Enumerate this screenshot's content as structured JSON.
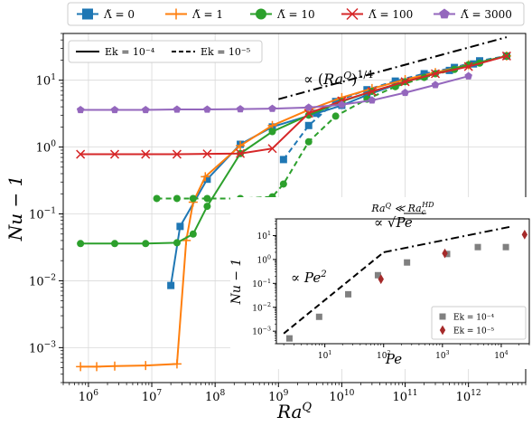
{
  "chart_data": [
    {
      "type": "line",
      "xscale": "log",
      "yscale": "log",
      "xlabel": "Ra^Q",
      "ylabel": "Nu − 1",
      "xlim": [
        400000,
        8000000000000
      ],
      "ylim": [
        0.0003,
        50
      ],
      "grid": true,
      "xticks": [
        {
          "v": 1000000,
          "b": "10",
          "e": "6"
        },
        {
          "v": 10000000,
          "b": "10",
          "e": "7"
        },
        {
          "v": 100000000,
          "b": "10",
          "e": "8"
        },
        {
          "v": 1000000000,
          "b": "10",
          "e": "9"
        },
        {
          "v": 10000000000,
          "b": "10",
          "e": "10"
        },
        {
          "v": 100000000000,
          "b": "10",
          "e": "11"
        },
        {
          "v": 1000000000000,
          "b": "10",
          "e": "12"
        }
      ],
      "yticks": [
        {
          "v": 0.001,
          "b": "10",
          "e": "−3"
        },
        {
          "v": 0.01,
          "b": "10",
          "e": "−2"
        },
        {
          "v": 0.1,
          "b": "10",
          "e": "−1"
        },
        {
          "v": 1,
          "b": "10",
          "e": "0"
        },
        {
          "v": 10,
          "b": "10",
          "e": "1"
        }
      ],
      "top_legend": [
        "Λ̃ = 0",
        "Λ̃ = 1",
        "Λ̃ = 10",
        "Λ̃ = 100",
        "Λ̃ = 3000"
      ],
      "style_legend": [
        "Ek = 10⁻⁴",
        "Ek = 10⁻⁵"
      ],
      "scaling_annotation": "∝ (Ra^Q)^(1/4)",
      "scaling_line": {
        "x": [
          1000000000,
          4000000000000
        ],
        "y": [
          5.2,
          44
        ]
      },
      "series": [
        {
          "name": "Λ̃ = 0",
          "color": "#1f77b4",
          "marker": "square",
          "dash": false,
          "x": [
            20000000,
            28000000,
            75000000,
            250000000,
            800000000,
            4000000000,
            10000000000,
            25000000000,
            70000000000,
            200000000000,
            500000000000,
            1200000000000,
            4000000000000
          ],
          "y": [
            0.0085,
            0.065,
            0.33,
            1.1,
            2.0,
            3.2,
            4.2,
            6.0,
            8.5,
            11.5,
            14.0,
            17.5,
            23
          ]
        },
        {
          "name": "Λ̃ = 0 (Ek = 10⁻⁵)",
          "color": "#1f77b4",
          "marker": "square",
          "dash": true,
          "x": [
            1200000000,
            3000000000,
            8000000000,
            25000000000,
            70000000000,
            200000000000,
            600000000000,
            1500000000000,
            4000000000000
          ],
          "y": [
            0.65,
            2.1,
            4.8,
            7.2,
            9.7,
            12.5,
            15.5,
            19.5,
            23
          ]
        },
        {
          "name": "Λ̃ = 1",
          "color": "#ff7f0e",
          "marker": "plus",
          "dash": false,
          "x": [
            750000,
            1350000,
            2600000,
            8000000,
            25000000,
            35000000,
            45000000,
            70000000,
            250000000,
            800000000,
            3000000000,
            10000000000,
            30000000000,
            100000000000,
            300000000000,
            1000000000000,
            4000000000000
          ],
          "y": [
            0.00052,
            0.00052,
            0.00053,
            0.00054,
            0.00057,
            0.04,
            0.15,
            0.36,
            1.05,
            2.1,
            3.6,
            5.5,
            7.5,
            10.2,
            13.0,
            17.0,
            23
          ]
        },
        {
          "name": "Λ̃ = 10",
          "color": "#2ca02c",
          "marker": "circle",
          "dash": false,
          "x": [
            750000,
            2600000,
            8000000,
            25000000,
            45000000,
            75000000,
            250000000,
            800000000,
            3000000000,
            10000000000,
            30000000000,
            100000000000,
            300000000000,
            1000000000000,
            4000000000000
          ],
          "y": [
            0.036,
            0.036,
            0.036,
            0.037,
            0.05,
            0.13,
            0.8,
            1.7,
            3.0,
            4.8,
            6.8,
            9.5,
            12.5,
            17.0,
            23
          ]
        },
        {
          "name": "Λ̃ = 10 (Ek = 10⁻⁵)",
          "color": "#2ca02c",
          "marker": "circle",
          "dash": true,
          "x": [
            12000000,
            25000000,
            45000000,
            75000000,
            250000000,
            800000000,
            1200000000,
            3000000000,
            8000000000,
            25000000000,
            70000000000,
            200000000000,
            600000000000,
            1500000000000,
            4000000000000
          ],
          "y": [
            0.17,
            0.17,
            0.17,
            0.17,
            0.17,
            0.18,
            0.28,
            1.2,
            2.9,
            5.2,
            8.0,
            11.0,
            14.5,
            18.0,
            23
          ]
        },
        {
          "name": "Λ̃ = 100",
          "color": "#d62728",
          "marker": "x",
          "dash": false,
          "x": [
            750000,
            2600000,
            8000000,
            25000000,
            75000000,
            250000000,
            800000000,
            3000000000,
            10000000000,
            30000000000,
            100000000000,
            300000000000,
            1000000000000,
            4000000000000
          ],
          "y": [
            0.78,
            0.78,
            0.78,
            0.78,
            0.79,
            0.8,
            0.95,
            3.2,
            4.9,
            6.8,
            9.5,
            12.5,
            16.0,
            23
          ]
        },
        {
          "name": "Λ̃ = 3000",
          "color": "#9467bd",
          "marker": "pentagon",
          "dash": false,
          "x": [
            750000,
            2600000,
            8000000,
            25000000,
            75000000,
            250000000,
            800000000,
            3000000000,
            10000000000,
            30000000000,
            100000000000,
            300000000000,
            1000000000000
          ],
          "y": [
            3.6,
            3.6,
            3.6,
            3.65,
            3.65,
            3.7,
            3.75,
            3.9,
            4.3,
            5.0,
            6.5,
            8.5,
            11.5
          ]
        }
      ]
    },
    {
      "type": "scatter",
      "xscale": "log",
      "yscale": "log",
      "title": "Ra^Q ≪ Ra_c^HD",
      "xlabel": "Pe",
      "ylabel": "Nu − 1",
      "xlim": [
        1.5,
        30000
      ],
      "ylim": [
        0.0003,
        50
      ],
      "xticks": [
        {
          "v": 10,
          "b": "10",
          "e": "1"
        },
        {
          "v": 100,
          "b": "10",
          "e": "2"
        },
        {
          "v": 1000,
          "b": "10",
          "e": "3"
        },
        {
          "v": 10000,
          "b": "10",
          "e": "4"
        }
      ],
      "yticks": [
        {
          "v": 0.001,
          "b": "10",
          "e": "−3"
        },
        {
          "v": 0.01,
          "b": "10",
          "e": "−2"
        },
        {
          "v": 0.1,
          "b": "10",
          "e": "−1"
        },
        {
          "v": 1,
          "b": "10",
          "e": "0"
        },
        {
          "v": 10,
          "b": "10",
          "e": "1"
        }
      ],
      "annotation_pe2": "∝ Pe²",
      "annotation_sqrt": "∝ √Pe",
      "fit_pe2": {
        "x": [
          2,
          100
        ],
        "y": [
          0.0008,
          2.0
        ]
      },
      "fit_sqrt": {
        "x": [
          100,
          15000
        ],
        "y": [
          2.0,
          24
        ]
      },
      "series": [
        {
          "name": "Ek = 10⁻⁴",
          "color": "#808080",
          "marker": "square",
          "x": [
            2.5,
            8,
            25,
            80,
            250,
            1200,
            4000,
            12000
          ],
          "y": [
            0.0005,
            0.004,
            0.035,
            0.22,
            0.75,
            1.7,
            3.3,
            3.3
          ]
        },
        {
          "name": "Ek = 10⁻⁵",
          "color": "#a52a2a",
          "marker": "diamond",
          "x": [
            90,
            1100,
            25000
          ],
          "y": [
            0.15,
            1.8,
            11
          ]
        }
      ]
    }
  ]
}
